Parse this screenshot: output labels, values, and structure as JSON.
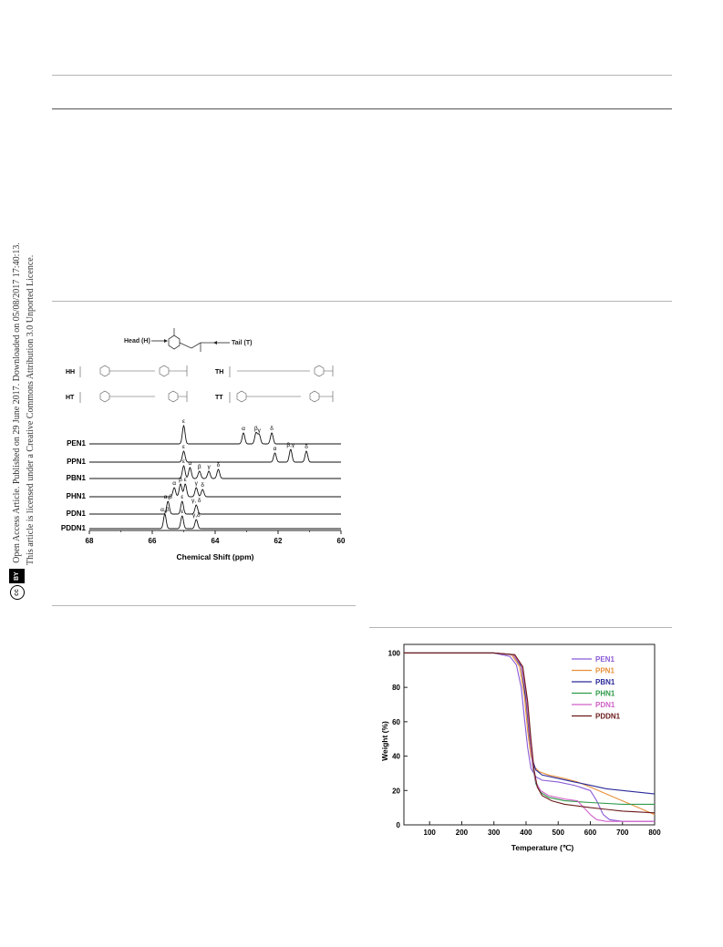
{
  "sidebar": {
    "line1": "Open Access Article. Published on 29 June 2017. Downloaded on 05/08/2017 17:40:13.",
    "line2": "This article is licensed under a Creative Commons Attribution 3.0 Unported Licence.",
    "cc_label": "cc",
    "by_label": "BY"
  },
  "nmr_figure": {
    "head_label": "Head (H)",
    "tail_label": "Tail (T)",
    "structure_labels": [
      "HH",
      "TH",
      "HT",
      "TT"
    ],
    "x_axis_label": "Chemical Shift (ppm)",
    "x_ticks": [
      "68",
      "66",
      "64",
      "62",
      "60"
    ],
    "traces": [
      {
        "name": "PEN1",
        "peak_labels": [
          "ε",
          "α",
          "β",
          "γ",
          "δ"
        ]
      },
      {
        "name": "PPN1",
        "peak_labels": [
          "ε",
          "α",
          "β,γ",
          "δ"
        ]
      },
      {
        "name": "PBN1",
        "peak_labels": [
          "ε",
          "α",
          "β",
          "γ",
          "δ"
        ]
      },
      {
        "name": "PHN1",
        "peak_labels": [
          "α",
          "β",
          "ε",
          "γ",
          "δ"
        ]
      },
      {
        "name": "PDN1",
        "peak_labels": [
          "α,β",
          "ε",
          "γ, δ"
        ]
      },
      {
        "name": "PDDN1",
        "peak_labels": [
          "α,β",
          "ε",
          "γ,δ"
        ]
      }
    ]
  },
  "chart_data": {
    "type": "line",
    "title": "",
    "xlabel": "Temperature (℃)",
    "ylabel": "Weight (%)",
    "xlim": [
      20,
      800
    ],
    "ylim": [
      0,
      105
    ],
    "x_ticks": [
      100,
      200,
      300,
      400,
      500,
      600,
      700,
      800
    ],
    "y_ticks": [
      0,
      20,
      40,
      60,
      80,
      100
    ],
    "legend_position": "top-right",
    "series": [
      {
        "name": "PEN1",
        "color": "#8a5ad6",
        "x": [
          20,
          300,
          350,
          370,
          385,
          395,
          405,
          415,
          430,
          450,
          500,
          550,
          600,
          620,
          640,
          660,
          700,
          750,
          800
        ],
        "y": [
          100,
          100,
          98,
          93,
          80,
          62,
          45,
          33,
          28,
          26,
          25,
          23,
          20,
          14,
          6,
          3,
          2,
          2,
          2
        ]
      },
      {
        "name": "PPN1",
        "color": "#e8903a",
        "x": [
          20,
          300,
          355,
          380,
          395,
          405,
          415,
          425,
          440,
          470,
          520,
          560,
          600,
          650,
          700,
          750,
          800
        ],
        "y": [
          100,
          100,
          99,
          92,
          75,
          55,
          40,
          34,
          31,
          29,
          27,
          25,
          22,
          18,
          14,
          10,
          6
        ]
      },
      {
        "name": "PBN1",
        "color": "#2b2b9a",
        "x": [
          20,
          300,
          360,
          385,
          400,
          410,
          420,
          430,
          450,
          500,
          550,
          600,
          650,
          700,
          750,
          800
        ],
        "y": [
          100,
          100,
          99,
          92,
          72,
          52,
          38,
          32,
          29,
          27,
          25,
          23,
          21,
          20,
          19,
          18
        ]
      },
      {
        "name": "PHN1",
        "color": "#2e9a4a",
        "x": [
          20,
          300,
          360,
          385,
          400,
          410,
          420,
          430,
          445,
          470,
          520,
          600,
          700,
          800
        ],
        "y": [
          100,
          100,
          99,
          93,
          75,
          55,
          35,
          24,
          19,
          16,
          14,
          13,
          12,
          12
        ]
      },
      {
        "name": "PDN1",
        "color": "#d060c8",
        "x": [
          20,
          300,
          360,
          385,
          400,
          410,
          420,
          430,
          445,
          470,
          520,
          560,
          580,
          600,
          620,
          650,
          700,
          800
        ],
        "y": [
          100,
          100,
          99,
          93,
          76,
          56,
          36,
          25,
          20,
          17,
          15,
          14,
          10,
          6,
          3,
          2,
          2,
          2
        ]
      },
      {
        "name": "PDDN1",
        "color": "#6a1a1a",
        "x": [
          20,
          300,
          365,
          390,
          405,
          415,
          425,
          435,
          450,
          480,
          520,
          600,
          650,
          700,
          800
        ],
        "y": [
          100,
          100,
          99,
          92,
          72,
          50,
          32,
          22,
          17,
          14,
          12,
          10,
          9,
          8,
          7
        ]
      }
    ]
  }
}
